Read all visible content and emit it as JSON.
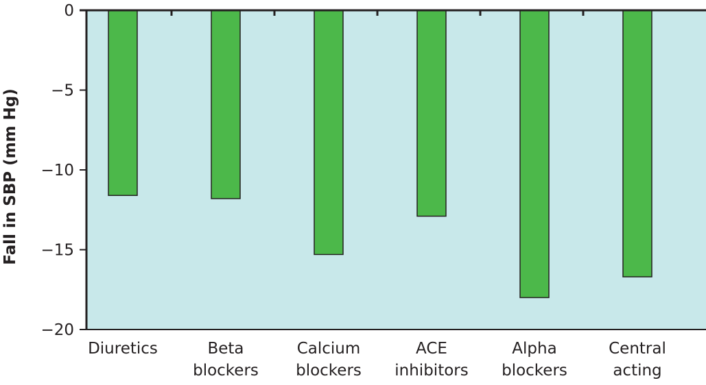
{
  "chart_data": {
    "type": "bar",
    "title": "",
    "xlabel": "",
    "ylabel": "Fall in SBP (mm Hg)",
    "categories": [
      [
        "Diuretics"
      ],
      [
        "Beta",
        "blockers"
      ],
      [
        "Calcium",
        "blockers"
      ],
      [
        "ACE",
        "inhibitors"
      ],
      [
        "Alpha",
        "blockers"
      ],
      [
        "Central",
        "acting"
      ]
    ],
    "values": [
      -11.6,
      -11.8,
      -15.3,
      -12.9,
      -18.0,
      -16.7
    ],
    "ylim": [
      -20,
      0
    ],
    "yticks": [
      0,
      -5,
      -10,
      -15,
      -20
    ],
    "ytick_labels": [
      "0",
      "−5",
      "−10",
      "−15",
      "−20"
    ],
    "colors": {
      "bar": "#4cb84a",
      "plot_bg": "#c8e8ea",
      "axis": "#231f20"
    }
  }
}
